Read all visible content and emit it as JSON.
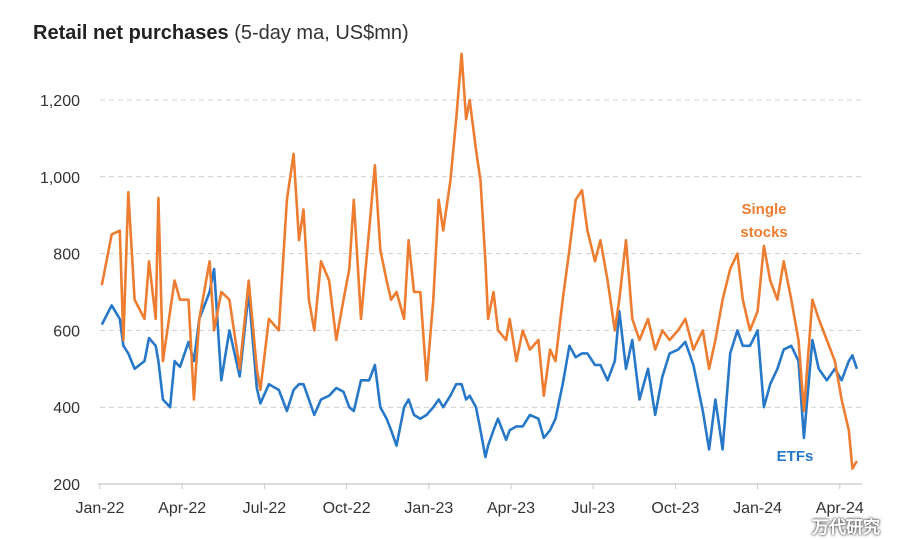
{
  "chart_data": {
    "type": "line",
    "title": "Retail net purchases",
    "subtitle": "(5-day ma, US$mn)",
    "xlabel": "",
    "ylabel": "",
    "ylim": [
      200,
      1300
    ],
    "yticks": [
      200,
      400,
      600,
      800,
      1000,
      1200
    ],
    "ytick_labels": [
      "200",
      "400",
      "600",
      "800",
      "1,000",
      "1,200"
    ],
    "xticks": [
      "2022-01-01",
      "2022-04-01",
      "2022-07-01",
      "2022-10-01",
      "2023-01-01",
      "2023-04-01",
      "2023-07-01",
      "2023-10-01",
      "2024-01-01",
      "2024-04-01"
    ],
    "xtick_labels": [
      "Jan-22",
      "Apr-22",
      "Jul-22",
      "Oct-22",
      "Jan-23",
      "Apr-23",
      "Jul-23",
      "Oct-23",
      "Jan-24",
      "Apr-24"
    ],
    "grid": "horizontal dashed",
    "colors": {
      "single_stocks": "#ED7D31",
      "etfs": "#2878C8"
    },
    "x": [
      "2022-01-03",
      "2022-01-14",
      "2022-01-23",
      "2022-01-27",
      "2022-02-02",
      "2022-02-09",
      "2022-02-20",
      "2022-02-25",
      "2022-03-02",
      "2022-03-05",
      "2022-03-10",
      "2022-03-18",
      "2022-03-23",
      "2022-03-29",
      "2022-04-08",
      "2022-04-14",
      "2022-04-20",
      "2022-05-01",
      "2022-05-06",
      "2022-05-14",
      "2022-05-23",
      "2022-06-04",
      "2022-06-14",
      "2022-06-23",
      "2022-06-27",
      "2022-07-06",
      "2022-07-17",
      "2022-07-26",
      "2022-08-03",
      "2022-08-09",
      "2022-08-14",
      "2022-08-20",
      "2022-08-26",
      "2022-09-03",
      "2022-09-12",
      "2022-09-20",
      "2022-09-28",
      "2022-10-04",
      "2022-10-09",
      "2022-10-17",
      "2022-10-26",
      "2022-11-02",
      "2022-11-08",
      "2022-11-15",
      "2022-11-20",
      "2022-11-26",
      "2022-12-04",
      "2022-12-09",
      "2022-12-15",
      "2022-12-22",
      "2022-12-29",
      "2023-01-06",
      "2023-01-12",
      "2023-01-17",
      "2023-01-25",
      "2023-02-01",
      "2023-02-07",
      "2023-02-12",
      "2023-02-16",
      "2023-02-23",
      "2023-02-28",
      "2023-03-03",
      "2023-03-06",
      "2023-03-12",
      "2023-03-17",
      "2023-03-26",
      "2023-03-30",
      "2023-04-07",
      "2023-04-14",
      "2023-04-22",
      "2023-05-01",
      "2023-05-07",
      "2023-05-14",
      "2023-05-20",
      "2023-05-28",
      "2023-06-05",
      "2023-06-12",
      "2023-06-19",
      "2023-06-25",
      "2023-07-03",
      "2023-07-09",
      "2023-07-17",
      "2023-07-25",
      "2023-07-30",
      "2023-08-07",
      "2023-08-14",
      "2023-08-22",
      "2023-09-01",
      "2023-09-09",
      "2023-09-17",
      "2023-09-25",
      "2023-10-04",
      "2023-10-12",
      "2023-10-21",
      "2023-11-01",
      "2023-11-08",
      "2023-11-15",
      "2023-11-23",
      "2023-12-01",
      "2023-12-09",
      "2023-12-15",
      "2023-12-23",
      "2024-01-01",
      "2024-01-08",
      "2024-01-15",
      "2024-01-23",
      "2024-01-30",
      "2024-02-08",
      "2024-02-16",
      "2024-02-22",
      "2024-03-01",
      "2024-03-08",
      "2024-03-17",
      "2024-03-26",
      "2024-04-03",
      "2024-04-11",
      "2024-04-15",
      "2024-04-20"
    ],
    "series": [
      {
        "name": "Single stocks",
        "label_lines": [
          "Single",
          "stocks"
        ],
        "color": "#ED7D31",
        "values": [
          718,
          850,
          860,
          575,
          960,
          680,
          630,
          780,
          630,
          945,
          520,
          650,
          730,
          680,
          680,
          420,
          630,
          780,
          600,
          700,
          680,
          500,
          730,
          500,
          445,
          630,
          600,
          940,
          1060,
          835,
          915,
          680,
          600,
          780,
          730,
          575,
          680,
          760,
          940,
          630,
          860,
          1030,
          810,
          730,
          680,
          700,
          630,
          835,
          700,
          700,
          470,
          680,
          940,
          860,
          990,
          1150,
          1320,
          1150,
          1200,
          1070,
          990,
          780,
          630,
          700,
          600,
          575,
          630,
          520,
          600,
          550,
          575,
          430,
          550,
          520,
          680,
          810,
          940,
          965,
          860,
          780,
          835,
          730,
          600,
          680,
          835,
          630,
          575,
          630,
          550,
          600,
          575,
          600,
          630,
          550,
          600,
          500,
          575,
          680,
          760,
          800,
          680,
          600,
          650,
          820,
          730,
          680,
          780,
          680,
          575,
          390,
          680,
          630,
          575,
          520,
          420,
          340,
          240,
          260
        ]
      },
      {
        "name": "ETFs",
        "label_lines": [
          "ETFs"
        ],
        "color": "#2878C8",
        "values": [
          615,
          665,
          630,
          560,
          540,
          500,
          520,
          580,
          560,
          520,
          420,
          400,
          520,
          505,
          570,
          520,
          630,
          700,
          760,
          470,
          600,
          480,
          700,
          450,
          410,
          460,
          445,
          390,
          445,
          460,
          460,
          420,
          380,
          420,
          430,
          450,
          440,
          400,
          390,
          470,
          470,
          510,
          400,
          370,
          340,
          300,
          400,
          420,
          380,
          370,
          380,
          400,
          420,
          400,
          430,
          460,
          460,
          420,
          430,
          400,
          340,
          270,
          300,
          340,
          370,
          315,
          340,
          350,
          350,
          380,
          370,
          320,
          340,
          370,
          460,
          560,
          530,
          540,
          540,
          510,
          510,
          470,
          520,
          650,
          500,
          575,
          420,
          500,
          380,
          480,
          540,
          550,
          570,
          510,
          390,
          290,
          420,
          290,
          540,
          600,
          560,
          560,
          600,
          400,
          460,
          500,
          550,
          560,
          520,
          320,
          575,
          500,
          470,
          500,
          470,
          520,
          535,
          500
        ]
      }
    ]
  },
  "watermark": "万代研究"
}
